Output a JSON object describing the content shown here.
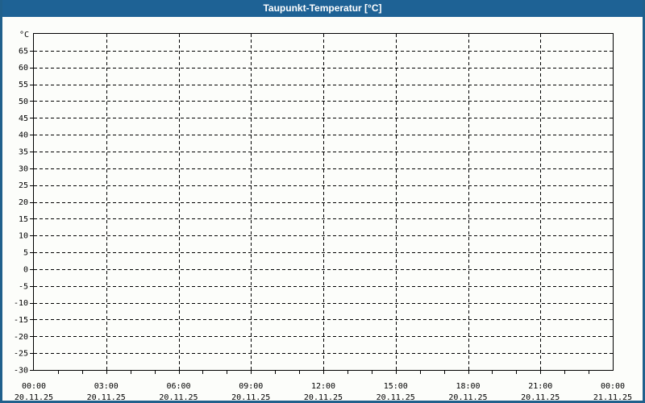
{
  "window": {
    "title": "Taupunkt-Temperatur [°C]"
  },
  "colors": {
    "titlebar_background": "#1E6295",
    "titlebar_text": "#FFFFFF",
    "window_border": "#20608C",
    "page_background": "#FCFDFA",
    "grid_and_axis": "#000000",
    "tick_label_text": "#000000"
  },
  "chart_data": {
    "type": "line",
    "title": "Taupunkt-Temperatur [°C]",
    "y_unit_label": "°C",
    "ylim": [
      -30,
      70
    ],
    "y_tick_step": 5,
    "y_ticks": [
      65,
      60,
      55,
      50,
      45,
      40,
      35,
      30,
      25,
      20,
      15,
      10,
      5,
      0,
      -5,
      -10,
      -15,
      -20,
      -25,
      -30
    ],
    "x_axis": {
      "hours_span": 24,
      "minor_tick_interval_hours": 1,
      "major_gridline_interval_hours": 3,
      "tick_labels": [
        {
          "time": "00:00",
          "date": "20.11.25"
        },
        {
          "time": "03:00",
          "date": "20.11.25"
        },
        {
          "time": "06:00",
          "date": "20.11.25"
        },
        {
          "time": "09:00",
          "date": "20.11.25"
        },
        {
          "time": "12:00",
          "date": "20.11.25"
        },
        {
          "time": "15:00",
          "date": "20.11.25"
        },
        {
          "time": "18:00",
          "date": "20.11.25"
        },
        {
          "time": "21:00",
          "date": "20.11.25"
        },
        {
          "time": "00:00",
          "date": "21.11.25"
        }
      ]
    },
    "grid": "dashed",
    "legend": "none",
    "series": []
  }
}
